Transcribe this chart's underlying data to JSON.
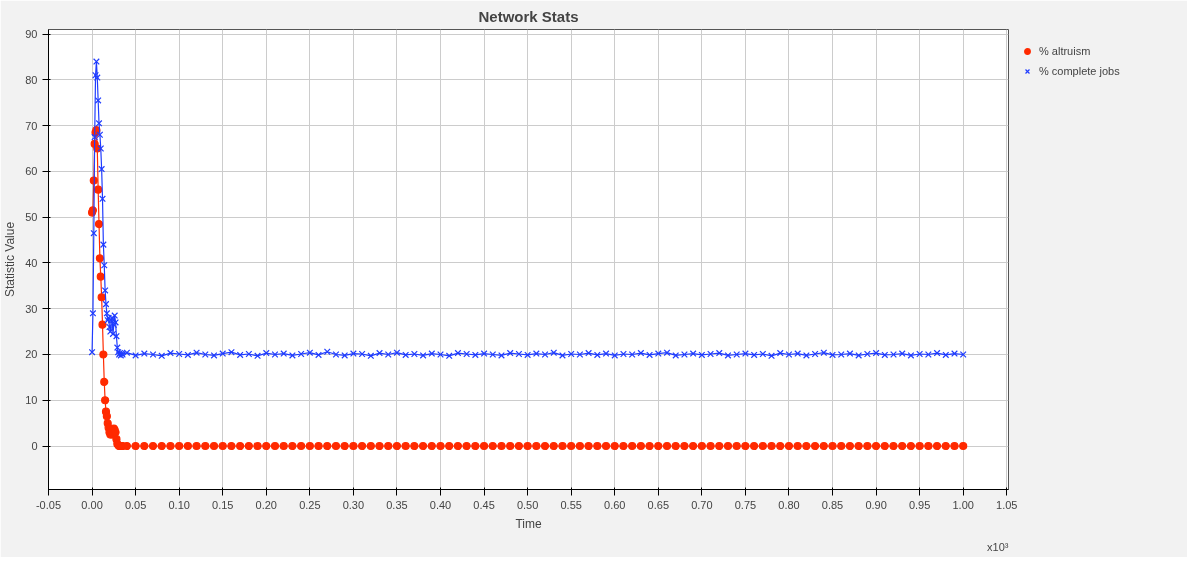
{
  "chart_data": {
    "type": "line",
    "title": "Network Stats",
    "xlabel": "Time",
    "ylabel": "Statistic Value",
    "annotations": [
      "x10³"
    ],
    "xlim": [
      -0.05,
      1.052
    ],
    "ylim": [
      -9.5,
      91
    ],
    "xticks": [
      {
        "value": -0.05,
        "label": "-0.05"
      },
      {
        "value": 0,
        "label": "0.00"
      },
      {
        "value": 0.05,
        "label": "0.05"
      },
      {
        "value": 0.1,
        "label": "0.10"
      },
      {
        "value": 0.15,
        "label": "0.15"
      },
      {
        "value": 0.2,
        "label": "0.20"
      },
      {
        "value": 0.25,
        "label": "0.25"
      },
      {
        "value": 0.3,
        "label": "0.30"
      },
      {
        "value": 0.35,
        "label": "0.35"
      },
      {
        "value": 0.4,
        "label": "0.40"
      },
      {
        "value": 0.45,
        "label": "0.45"
      },
      {
        "value": 0.5,
        "label": "0.50"
      },
      {
        "value": 0.55,
        "label": "0.55"
      },
      {
        "value": 0.6,
        "label": "0.60"
      },
      {
        "value": 0.65,
        "label": "0.65"
      },
      {
        "value": 0.7,
        "label": "0.70"
      },
      {
        "value": 0.75,
        "label": "0.75"
      },
      {
        "value": 0.8,
        "label": "0.80"
      },
      {
        "value": 0.85,
        "label": "0.85"
      },
      {
        "value": 0.9,
        "label": "0.90"
      },
      {
        "value": 0.95,
        "label": "0.95"
      },
      {
        "value": 1.0,
        "label": "1.00"
      },
      {
        "value": 1.05,
        "label": "1.05"
      }
    ],
    "yticks": [
      0,
      10,
      20,
      30,
      40,
      50,
      60,
      70,
      80,
      90
    ],
    "grid": true,
    "legend": "top right",
    "series": [
      {
        "name": "% altruism",
        "color": "#ff2a00",
        "marker": "circle",
        "x": [
          0.0,
          0.001,
          0.002,
          0.003,
          0.004,
          0.005,
          0.006,
          0.007,
          0.008,
          0.009,
          0.01,
          0.011,
          0.012,
          0.013,
          0.014,
          0.015,
          0.016,
          0.017,
          0.018,
          0.019,
          0.02,
          0.021,
          0.022,
          0.023,
          0.024,
          0.025,
          0.026,
          0.027,
          0.028,
          0.029,
          0.03,
          0.031,
          0.032,
          0.033,
          0.034,
          0.035,
          0.04,
          0.05,
          0.06,
          0.07,
          0.08,
          0.09,
          0.1,
          0.11,
          0.12,
          0.13,
          0.14,
          0.15,
          0.16,
          0.17,
          0.18,
          0.19,
          0.2,
          0.21,
          0.22,
          0.23,
          0.24,
          0.25,
          0.26,
          0.27,
          0.28,
          0.29,
          0.3,
          0.31,
          0.32,
          0.33,
          0.34,
          0.35,
          0.36,
          0.37,
          0.38,
          0.39,
          0.4,
          0.41,
          0.42,
          0.43,
          0.44,
          0.45,
          0.46,
          0.47,
          0.48,
          0.49,
          0.5,
          0.51,
          0.52,
          0.53,
          0.54,
          0.55,
          0.56,
          0.57,
          0.58,
          0.59,
          0.6,
          0.61,
          0.62,
          0.63,
          0.64,
          0.65,
          0.66,
          0.67,
          0.68,
          0.69,
          0.7,
          0.71,
          0.72,
          0.73,
          0.74,
          0.75,
          0.76,
          0.77,
          0.78,
          0.79,
          0.8,
          0.81,
          0.82,
          0.83,
          0.84,
          0.85,
          0.86,
          0.87,
          0.88,
          0.89,
          0.9,
          0.91,
          0.92,
          0.93,
          0.94,
          0.95,
          0.96,
          0.97,
          0.98,
          0.99,
          1.0
        ],
        "values": [
          51,
          51.5,
          58,
          66,
          68.5,
          69,
          65,
          56,
          48.5,
          41,
          37,
          32.5,
          26.5,
          20,
          14,
          10,
          7.5,
          6.5,
          5,
          4,
          3,
          2.5,
          3.5,
          3,
          2.5,
          3.8,
          3.5,
          3,
          1.5,
          0.5,
          0.2,
          0,
          0,
          0,
          0,
          0,
          0,
          0,
          0,
          0,
          0,
          0,
          0,
          0,
          0,
          0,
          0,
          0,
          0,
          0,
          0,
          0,
          0,
          0,
          0,
          0,
          0,
          0,
          0,
          0,
          0,
          0,
          0,
          0,
          0,
          0,
          0,
          0,
          0,
          0,
          0,
          0,
          0,
          0,
          0,
          0,
          0,
          0,
          0,
          0,
          0,
          0,
          0,
          0,
          0,
          0,
          0,
          0,
          0,
          0,
          0,
          0,
          0,
          0,
          0,
          0,
          0,
          0,
          0,
          0,
          0,
          0,
          0,
          0,
          0,
          0,
          0,
          0,
          0,
          0,
          0,
          0,
          0,
          0,
          0,
          0,
          0,
          0,
          0,
          0,
          0,
          0,
          0,
          0,
          0,
          0,
          0,
          0,
          0,
          0,
          0,
          0,
          0
        ]
      },
      {
        "name": "% complete jobs",
        "color": "#1f3cff",
        "marker": "cross",
        "x": [
          0.0,
          0.001,
          0.002,
          0.003,
          0.004,
          0.005,
          0.006,
          0.007,
          0.008,
          0.009,
          0.01,
          0.011,
          0.012,
          0.013,
          0.014,
          0.015,
          0.016,
          0.017,
          0.018,
          0.019,
          0.02,
          0.021,
          0.022,
          0.023,
          0.024,
          0.025,
          0.026,
          0.027,
          0.028,
          0.029,
          0.03,
          0.031,
          0.032,
          0.033,
          0.034,
          0.035,
          0.04,
          0.05,
          0.06,
          0.07,
          0.08,
          0.09,
          0.1,
          0.11,
          0.12,
          0.13,
          0.14,
          0.15,
          0.16,
          0.17,
          0.18,
          0.19,
          0.2,
          0.21,
          0.22,
          0.23,
          0.24,
          0.25,
          0.26,
          0.27,
          0.28,
          0.29,
          0.3,
          0.31,
          0.32,
          0.33,
          0.34,
          0.35,
          0.36,
          0.37,
          0.38,
          0.39,
          0.4,
          0.41,
          0.42,
          0.43,
          0.44,
          0.45,
          0.46,
          0.47,
          0.48,
          0.49,
          0.5,
          0.51,
          0.52,
          0.53,
          0.54,
          0.55,
          0.56,
          0.57,
          0.58,
          0.59,
          0.6,
          0.61,
          0.62,
          0.63,
          0.64,
          0.65,
          0.66,
          0.67,
          0.68,
          0.69,
          0.7,
          0.71,
          0.72,
          0.73,
          0.74,
          0.75,
          0.76,
          0.77,
          0.78,
          0.79,
          0.8,
          0.81,
          0.82,
          0.83,
          0.84,
          0.85,
          0.86,
          0.87,
          0.88,
          0.89,
          0.9,
          0.91,
          0.92,
          0.93,
          0.94,
          0.95,
          0.96,
          0.97,
          0.98,
          0.99,
          1.0
        ],
        "values": [
          20.5,
          29,
          46.5,
          67.5,
          81,
          84,
          80.5,
          75.5,
          70.5,
          68,
          65,
          60.5,
          54,
          44,
          39.5,
          34,
          31,
          29,
          27.5,
          28,
          26,
          25,
          27.5,
          28,
          24.5,
          26.5,
          28.5,
          27,
          24,
          21.5,
          20.5,
          20,
          20.3,
          19.8,
          20.2,
          20,
          20.4,
          19.8,
          20.2,
          20,
          19.7,
          20.3,
          20.1,
          19.9,
          20.4,
          20,
          19.8,
          20.2,
          20.5,
          19.9,
          20.1,
          19.7,
          20.3,
          20,
          20.2,
          19.8,
          20.1,
          20.4,
          19.9,
          20.6,
          20,
          19.8,
          20.2,
          20.1,
          19.7,
          20.3,
          20,
          20.4,
          19.9,
          20.1,
          19.8,
          20.2,
          20,
          19.7,
          20.3,
          20.1,
          19.9,
          20.2,
          20,
          19.8,
          20.3,
          20.1,
          19.9,
          20.2,
          20,
          20.4,
          19.8,
          20.1,
          20,
          20.3,
          19.9,
          20.2,
          19.8,
          20.1,
          20,
          20.3,
          19.9,
          20.2,
          20.4,
          19.8,
          20,
          20.2,
          19.9,
          20.1,
          20.3,
          19.8,
          20,
          20.2,
          19.9,
          20.1,
          19.7,
          20.3,
          20,
          20.2,
          19.8,
          20.1,
          20.4,
          19.9,
          20,
          20.2,
          19.8,
          20.1,
          20.3,
          19.9,
          20,
          20.2,
          19.8,
          20.1,
          20,
          20.3,
          19.9,
          20.2,
          20
        ]
      }
    ]
  }
}
